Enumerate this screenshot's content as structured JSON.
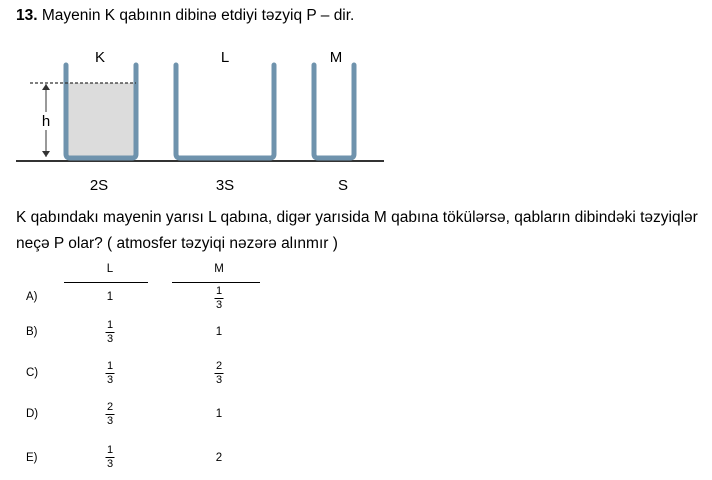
{
  "question": {
    "number": "13.",
    "title": "Mayenin K qabının dibinə etdiyi təzyiq P – dir.",
    "text": "K qabındakı mayenin yarısı L qabına, digər yarısida M qabına tökülərsə, qabların dibindəki təzyiqlər neçə P olar? ( atmosfer təzyiqi nəzərə alınmır )"
  },
  "figure": {
    "containers": [
      {
        "label": "K",
        "area": "2S",
        "filled": true
      },
      {
        "label": "L",
        "area": "3S",
        "filled": false
      },
      {
        "label": "M",
        "area": "S",
        "filled": false
      }
    ],
    "height_label": "h",
    "colors": {
      "wall": "#6f93ad",
      "liquid": "#dcdcdc",
      "ground": "#333333"
    }
  },
  "table": {
    "headers": [
      "L",
      "M"
    ],
    "options": [
      {
        "label": "A)",
        "L": {
          "num": "1",
          "den": ""
        },
        "M": {
          "num": "1",
          "den": "3"
        }
      },
      {
        "label": "B)",
        "L": {
          "num": "1",
          "den": "3"
        },
        "M": {
          "num": "1",
          "den": ""
        }
      },
      {
        "label": "C)",
        "L": {
          "num": "1",
          "den": "3"
        },
        "M": {
          "num": "2",
          "den": "3"
        }
      },
      {
        "label": "D)",
        "L": {
          "num": "2",
          "den": "3"
        },
        "M": {
          "num": "1",
          "den": ""
        }
      },
      {
        "label": "E)",
        "L": {
          "num": "1",
          "den": "3"
        },
        "M": {
          "num": "2",
          "den": ""
        }
      }
    ]
  }
}
